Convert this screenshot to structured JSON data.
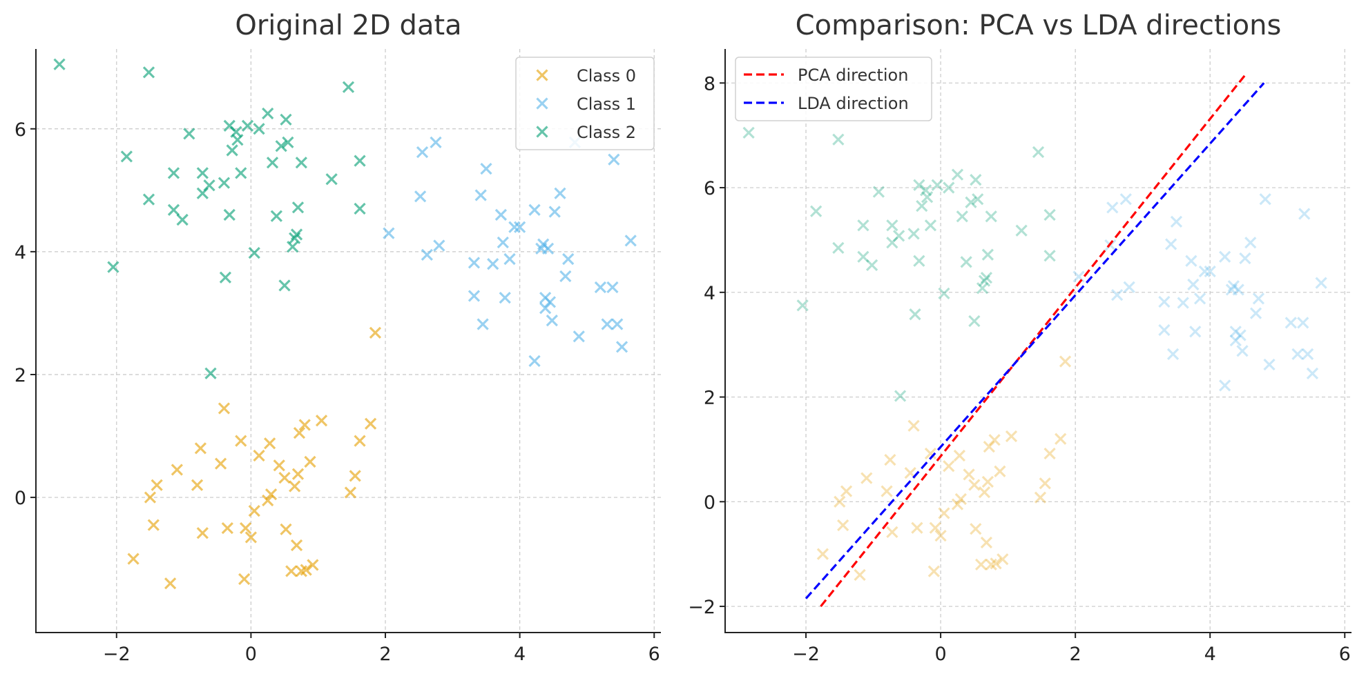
{
  "chart_data": [
    {
      "type": "scatter",
      "title": "Original 2D data",
      "xlabel": "",
      "ylabel": "",
      "xlim": [
        -3.2,
        6.1
      ],
      "ylim": [
        -2.2,
        7.3
      ],
      "xticks": [
        -2,
        0,
        2,
        4,
        6
      ],
      "yticks": [
        0,
        2,
        4,
        6
      ],
      "xtick_labels": [
        "−2",
        "0",
        "2",
        "4",
        "6"
      ],
      "ytick_labels": [
        "0",
        "2",
        "4",
        "6"
      ],
      "grid": true,
      "legend_position": "top-right",
      "series": [
        {
          "name": "Class 0",
          "color": "#E69F00",
          "marker": "x",
          "points": [
            [
              -1.75,
              -1.0
            ],
            [
              -1.5,
              0.0
            ],
            [
              -1.45,
              -0.45
            ],
            [
              -1.4,
              0.2
            ],
            [
              -1.2,
              -1.4
            ],
            [
              -1.1,
              0.45
            ],
            [
              -0.8,
              0.2
            ],
            [
              -0.75,
              0.8
            ],
            [
              -0.72,
              -0.58
            ],
            [
              -0.45,
              0.55
            ],
            [
              -0.4,
              1.45
            ],
            [
              -0.35,
              -0.5
            ],
            [
              -0.15,
              0.92
            ],
            [
              -0.1,
              -1.33
            ],
            [
              -0.08,
              -0.5
            ],
            [
              0.0,
              -0.65
            ],
            [
              0.05,
              -0.22
            ],
            [
              0.12,
              0.68
            ],
            [
              0.25,
              -0.05
            ],
            [
              0.28,
              0.88
            ],
            [
              0.3,
              0.05
            ],
            [
              0.42,
              0.52
            ],
            [
              0.5,
              0.32
            ],
            [
              0.52,
              -0.52
            ],
            [
              0.6,
              -1.2
            ],
            [
              0.65,
              0.18
            ],
            [
              0.68,
              -0.78
            ],
            [
              0.7,
              0.38
            ],
            [
              0.72,
              1.05
            ],
            [
              0.75,
              -1.2
            ],
            [
              0.8,
              1.18
            ],
            [
              0.82,
              -1.18
            ],
            [
              0.88,
              0.58
            ],
            [
              0.92,
              -1.1
            ],
            [
              1.05,
              1.25
            ],
            [
              1.48,
              0.08
            ],
            [
              1.55,
              0.35
            ],
            [
              1.62,
              0.92
            ],
            [
              1.78,
              1.2
            ],
            [
              1.85,
              2.68
            ]
          ]
        },
        {
          "name": "Class 1",
          "color": "#56B4E9",
          "marker": "x",
          "points": [
            [
              2.05,
              4.3
            ],
            [
              2.52,
              4.9
            ],
            [
              2.55,
              5.62
            ],
            [
              2.62,
              3.95
            ],
            [
              2.75,
              5.78
            ],
            [
              2.8,
              4.1
            ],
            [
              3.32,
              3.82
            ],
            [
              3.32,
              3.28
            ],
            [
              3.42,
              4.92
            ],
            [
              3.45,
              2.82
            ],
            [
              3.5,
              5.35
            ],
            [
              3.6,
              3.8
            ],
            [
              3.72,
              4.6
            ],
            [
              3.75,
              4.15
            ],
            [
              3.78,
              3.25
            ],
            [
              3.85,
              3.88
            ],
            [
              3.92,
              4.4
            ],
            [
              4.0,
              4.4
            ],
            [
              4.22,
              4.68
            ],
            [
              4.22,
              2.22
            ],
            [
              4.32,
              4.05
            ],
            [
              4.35,
              4.12
            ],
            [
              4.38,
              3.25
            ],
            [
              4.38,
              3.08
            ],
            [
              4.42,
              4.05
            ],
            [
              4.45,
              3.18
            ],
            [
              4.48,
              2.88
            ],
            [
              4.52,
              4.65
            ],
            [
              4.6,
              4.95
            ],
            [
              4.68,
              3.6
            ],
            [
              4.72,
              3.88
            ],
            [
              4.82,
              5.78
            ],
            [
              4.88,
              2.62
            ],
            [
              5.2,
              3.42
            ],
            [
              5.3,
              2.82
            ],
            [
              5.38,
              3.42
            ],
            [
              5.4,
              5.5
            ],
            [
              5.45,
              2.82
            ],
            [
              5.52,
              2.45
            ],
            [
              5.65,
              4.18
            ]
          ]
        },
        {
          "name": "Class 2",
          "color": "#009E73",
          "marker": "x",
          "points": [
            [
              -2.85,
              7.05
            ],
            [
              -2.05,
              3.75
            ],
            [
              -1.85,
              5.55
            ],
            [
              -1.52,
              6.92
            ],
            [
              -1.52,
              4.85
            ],
            [
              -1.15,
              5.28
            ],
            [
              -1.15,
              4.68
            ],
            [
              -1.02,
              4.52
            ],
            [
              -0.92,
              5.92
            ],
            [
              -0.72,
              5.28
            ],
            [
              -0.72,
              4.95
            ],
            [
              -0.62,
              5.08
            ],
            [
              -0.6,
              2.02
            ],
            [
              -0.4,
              5.12
            ],
            [
              -0.38,
              3.58
            ],
            [
              -0.32,
              6.05
            ],
            [
              -0.32,
              4.6
            ],
            [
              -0.28,
              5.65
            ],
            [
              -0.22,
              5.95
            ],
            [
              -0.2,
              5.82
            ],
            [
              -0.15,
              5.28
            ],
            [
              -0.05,
              6.05
            ],
            [
              0.05,
              3.98
            ],
            [
              0.12,
              6.0
            ],
            [
              0.25,
              6.25
            ],
            [
              0.32,
              5.45
            ],
            [
              0.38,
              4.58
            ],
            [
              0.45,
              5.72
            ],
            [
              0.5,
              3.45
            ],
            [
              0.52,
              6.15
            ],
            [
              0.55,
              5.78
            ],
            [
              0.62,
              4.08
            ],
            [
              0.65,
              4.22
            ],
            [
              0.68,
              4.28
            ],
            [
              0.7,
              4.72
            ],
            [
              0.75,
              5.45
            ],
            [
              1.2,
              5.18
            ],
            [
              1.45,
              6.68
            ],
            [
              1.62,
              5.48
            ],
            [
              1.62,
              4.7
            ]
          ]
        }
      ]
    },
    {
      "type": "scatter",
      "title": "Comparison: PCA vs LDA directions",
      "xlabel": "",
      "ylabel": "",
      "xlim": [
        -3.2,
        6.1
      ],
      "ylim": [
        -2.5,
        8.65
      ],
      "xticks": [
        -2,
        0,
        2,
        4,
        6
      ],
      "yticks": [
        -2,
        0,
        2,
        4,
        6,
        8
      ],
      "xtick_labels": [
        "−2",
        "0",
        "2",
        "4",
        "6"
      ],
      "ytick_labels": [
        "−2",
        "0",
        "2",
        "4",
        "6",
        "8"
      ],
      "grid": true,
      "legend_position": "top-left",
      "point_alpha": 0.3,
      "lines": [
        {
          "name": "PCA direction",
          "color": "#ff0000",
          "style": "dashed",
          "points": [
            [
              -1.78,
              -2.0
            ],
            [
              4.55,
              8.2
            ]
          ]
        },
        {
          "name": "LDA direction",
          "color": "#0000ff",
          "style": "dashed",
          "points": [
            [
              -2.0,
              -1.85
            ],
            [
              4.8,
              8.0
            ]
          ]
        }
      ],
      "scatter_series": [
        "Class 0",
        "Class 1",
        "Class 2"
      ]
    }
  ]
}
